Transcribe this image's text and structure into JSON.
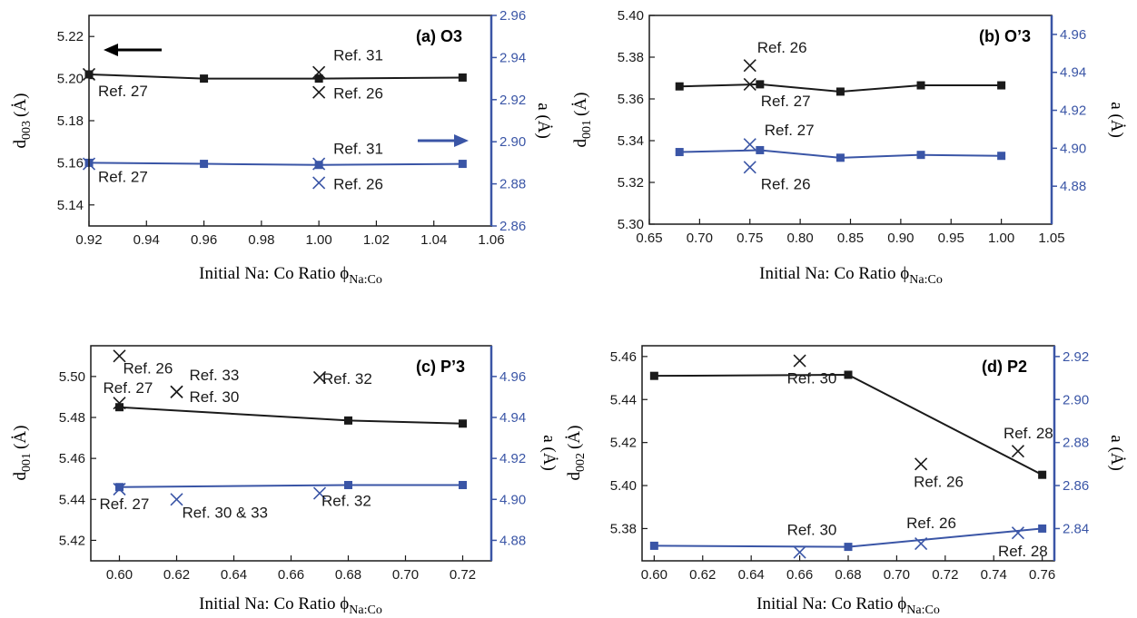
{
  "colors": {
    "black": "#1a1a1a",
    "blue": "#3a55a6"
  },
  "chart_data": [
    {
      "type": "line",
      "panel_label": "(a)  O3",
      "xlabel": "Initial Na: Co Ratio ϕ",
      "xlabel_sub": "Na:Co",
      "ylabel": "d",
      "ylabel_sub": "003",
      "ylabel_unit": "(Ȧ)",
      "y2label": "a (Ȧ)",
      "xlim": [
        0.92,
        1.06
      ],
      "xticks": [
        0.92,
        0.94,
        0.96,
        0.98,
        1.0,
        1.02,
        1.04,
        1.06
      ],
      "xtick_labels": [
        "0.92",
        "0.94",
        "0.96",
        "0.98",
        "1.00",
        "1.02",
        "1.04",
        "1.06"
      ],
      "ylim": [
        5.13,
        5.23
      ],
      "yticks": [
        5.14,
        5.16,
        5.18,
        5.2,
        5.22
      ],
      "ytick_labels": [
        "5.14",
        "5.16",
        "5.18",
        "5.20",
        "5.22"
      ],
      "y2lim": [
        2.86,
        2.96
      ],
      "y2ticks": [
        2.86,
        2.88,
        2.9,
        2.92,
        2.94,
        2.96
      ],
      "y2tick_labels": [
        "2.86",
        "2.88",
        "2.90",
        "2.92",
        "2.94",
        "2.96"
      ],
      "series": [
        {
          "axis": "left",
          "color": "black",
          "x": [
            0.92,
            0.96,
            1.0,
            1.05
          ],
          "y": [
            5.202,
            5.2,
            5.2,
            5.2005
          ]
        },
        {
          "axis": "right",
          "color": "blue",
          "x": [
            0.92,
            0.96,
            1.0,
            1.05
          ],
          "y": [
            2.89,
            2.8895,
            2.889,
            2.8895
          ]
        }
      ],
      "refs": [
        {
          "axis": "left",
          "color": "black",
          "x": 0.92,
          "y": 5.202,
          "label": "Ref. 27",
          "dx": 10,
          "dy": 24
        },
        {
          "axis": "left",
          "color": "black",
          "x": 1.0,
          "y": 5.203,
          "label": "Ref. 31",
          "dx": 16,
          "dy": -13
        },
        {
          "axis": "left",
          "color": "black",
          "x": 1.0,
          "y": 5.1935,
          "label": "Ref. 26",
          "dx": 16,
          "dy": 7
        },
        {
          "axis": "right",
          "color": "blue",
          "x": 0.92,
          "y": 2.8895,
          "label": "Ref. 27",
          "dx": 10,
          "dy": 20
        },
        {
          "axis": "right",
          "color": "blue",
          "x": 1.0,
          "y": 2.8895,
          "label": "Ref. 31",
          "dx": 16,
          "dy": -11
        },
        {
          "axis": "right",
          "color": "blue",
          "x": 1.0,
          "y": 2.8805,
          "label": "Ref. 26",
          "dx": 16,
          "dy": 7
        }
      ]
    },
    {
      "type": "line",
      "panel_label": "(b)  O’3",
      "xlabel": "Initial Na: Co Ratio ϕ",
      "xlabel_sub": "Na:Co",
      "ylabel": "d",
      "ylabel_sub": "001",
      "ylabel_unit": "(Ȧ)",
      "y2label": "a (Ȧ)",
      "xlim": [
        0.65,
        1.05
      ],
      "xticks": [
        0.65,
        0.7,
        0.75,
        0.8,
        0.85,
        0.9,
        0.95,
        1.0,
        1.05
      ],
      "xtick_labels": [
        "0.65",
        "0.70",
        "0.75",
        "0.80",
        "0.85",
        "0.90",
        "0.95",
        "1.00",
        "1.05"
      ],
      "ylim": [
        5.3,
        5.4
      ],
      "yticks": [
        5.3,
        5.32,
        5.34,
        5.36,
        5.38,
        5.4
      ],
      "ytick_labels": [
        "5.30",
        "5.32",
        "5.34",
        "5.36",
        "5.38",
        "5.40"
      ],
      "y2lim": [
        4.86,
        4.97
      ],
      "y2ticks": [
        4.88,
        4.9,
        4.92,
        4.94,
        4.96
      ],
      "y2tick_labels": [
        "4.88",
        "4.90",
        "4.92",
        "4.94",
        "4.96"
      ],
      "series": [
        {
          "axis": "left",
          "color": "black",
          "x": [
            0.68,
            0.76,
            0.84,
            0.92,
            1.0
          ],
          "y": [
            5.366,
            5.367,
            5.3635,
            5.3665,
            5.3665
          ]
        },
        {
          "axis": "right",
          "color": "blue",
          "x": [
            0.68,
            0.76,
            0.84,
            0.92,
            1.0
          ],
          "y": [
            4.898,
            4.899,
            4.895,
            4.8965,
            4.896
          ]
        }
      ],
      "refs": [
        {
          "axis": "left",
          "color": "black",
          "x": 0.75,
          "y": 5.376,
          "label": "Ref. 26",
          "dx": 8,
          "dy": -14
        },
        {
          "axis": "left",
          "color": "black",
          "x": 0.75,
          "y": 5.367,
          "label": "Ref. 27",
          "dx": 12,
          "dy": 24
        },
        {
          "axis": "right",
          "color": "blue",
          "x": 0.75,
          "y": 4.902,
          "label": "Ref. 27",
          "dx": 16,
          "dy": -10
        },
        {
          "axis": "right",
          "color": "blue",
          "x": 0.75,
          "y": 4.89,
          "label": "Ref. 26",
          "dx": 12,
          "dy": 24
        }
      ]
    },
    {
      "type": "line",
      "panel_label": "(c)  P’3",
      "xlabel": "Initial Na: Co Ratio ϕ",
      "xlabel_sub": "Na:Co",
      "ylabel": "d",
      "ylabel_sub": "001",
      "ylabel_unit": "(Ȧ)",
      "y2label": "a (Ȧ)",
      "xlim": [
        0.59,
        0.73
      ],
      "xticks": [
        0.6,
        0.62,
        0.64,
        0.66,
        0.68,
        0.7,
        0.72
      ],
      "xtick_labels": [
        "0.60",
        "0.62",
        "0.64",
        "0.66",
        "0.68",
        "0.70",
        "0.72"
      ],
      "ylim": [
        5.41,
        5.515
      ],
      "yticks": [
        5.42,
        5.44,
        5.46,
        5.48,
        5.5
      ],
      "ytick_labels": [
        "5.42",
        "5.44",
        "5.46",
        "5.48",
        "5.50"
      ],
      "y2lim": [
        4.87,
        4.975
      ],
      "y2ticks": [
        4.88,
        4.9,
        4.92,
        4.94,
        4.96
      ],
      "y2tick_labels": [
        "4.88",
        "4.90",
        "4.92",
        "4.94",
        "4.96"
      ],
      "series": [
        {
          "axis": "left",
          "color": "black",
          "x": [
            0.6,
            0.68,
            0.72
          ],
          "y": [
            5.485,
            5.4785,
            5.477
          ]
        },
        {
          "axis": "right",
          "color": "blue",
          "x": [
            0.6,
            0.68,
            0.72
          ],
          "y": [
            4.906,
            4.907,
            4.907
          ]
        }
      ],
      "refs": [
        {
          "axis": "left",
          "color": "black",
          "x": 0.6,
          "y": 5.51,
          "label": "Ref. 26",
          "dx": 4,
          "dy": 19
        },
        {
          "axis": "left",
          "color": "black",
          "x": 0.6,
          "y": 5.487,
          "label": "Ref. 27",
          "dx": -18,
          "dy": -11
        },
        {
          "axis": "left",
          "color": "black",
          "x": 0.62,
          "y": 5.4925,
          "label": "Ref. 33",
          "dx": 14,
          "dy": -13
        },
        {
          "axis": "left",
          "color": "black",
          "x": 0.62,
          "y": 5.4925,
          "label": "Ref. 30",
          "dx": 14,
          "dy": 11
        },
        {
          "axis": "left",
          "color": "black",
          "x": 0.67,
          "y": 5.4995,
          "label": "Ref. 32",
          "dx": 3,
          "dy": 7
        },
        {
          "axis": "right",
          "color": "blue",
          "x": 0.6,
          "y": 4.905,
          "label": "Ref. 27",
          "dx": -22,
          "dy": 22
        },
        {
          "axis": "right",
          "color": "blue",
          "x": 0.62,
          "y": 4.9,
          "label": "Ref. 30 & 33",
          "dx": 6,
          "dy": 20
        },
        {
          "axis": "right",
          "color": "blue",
          "x": 0.67,
          "y": 4.903,
          "label": "Ref. 32",
          "dx": 2,
          "dy": 14
        }
      ]
    },
    {
      "type": "line",
      "panel_label": "(d)  P2",
      "xlabel": "Initial Na: Co Ratio ϕ",
      "xlabel_sub": "Na:Co",
      "ylabel": "d",
      "ylabel_sub": "002",
      "ylabel_unit": "(Ȧ)",
      "y2label": "a (Ȧ)",
      "xlim": [
        0.595,
        0.765
      ],
      "xticks": [
        0.6,
        0.62,
        0.64,
        0.66,
        0.68,
        0.7,
        0.72,
        0.74,
        0.76
      ],
      "xtick_labels": [
        "0.60",
        "0.62",
        "0.64",
        "0.66",
        "0.68",
        "0.70",
        "0.72",
        "0.74",
        "0.76"
      ],
      "ylim": [
        5.365,
        5.465
      ],
      "yticks": [
        5.38,
        5.4,
        5.42,
        5.44,
        5.46
      ],
      "ytick_labels": [
        "5.38",
        "5.40",
        "5.42",
        "5.44",
        "5.46"
      ],
      "y2lim": [
        2.825,
        2.925
      ],
      "y2ticks": [
        2.84,
        2.86,
        2.88,
        2.9,
        2.92
      ],
      "y2tick_labels": [
        "2.84",
        "2.86",
        "2.88",
        "2.90",
        "2.92"
      ],
      "series": [
        {
          "axis": "left",
          "color": "black",
          "x": [
            0.6,
            0.68,
            0.76
          ],
          "y": [
            5.451,
            5.4515,
            5.405
          ]
        },
        {
          "axis": "right",
          "color": "blue",
          "x": [
            0.6,
            0.68,
            0.76
          ],
          "y": [
            2.832,
            2.8315,
            2.84
          ]
        }
      ],
      "refs": [
        {
          "axis": "left",
          "color": "black",
          "x": 0.66,
          "y": 5.458,
          "label": "Ref. 30",
          "dx": -14,
          "dy": 25
        },
        {
          "axis": "left",
          "color": "black",
          "x": 0.71,
          "y": 5.41,
          "label": "Ref. 26",
          "dx": -8,
          "dy": 25
        },
        {
          "axis": "left",
          "color": "black",
          "x": 0.75,
          "y": 5.416,
          "label": "Ref. 28",
          "dx": -16,
          "dy": -14
        },
        {
          "axis": "right",
          "color": "blue",
          "x": 0.66,
          "y": 2.829,
          "label": "Ref. 30",
          "dx": -14,
          "dy": -19
        },
        {
          "axis": "right",
          "color": "blue",
          "x": 0.71,
          "y": 2.833,
          "label": "Ref. 26",
          "dx": -16,
          "dy": -17
        },
        {
          "axis": "right",
          "color": "blue",
          "x": 0.75,
          "y": 2.838,
          "label": "Ref. 28",
          "dx": -22,
          "dy": 26
        }
      ]
    }
  ]
}
